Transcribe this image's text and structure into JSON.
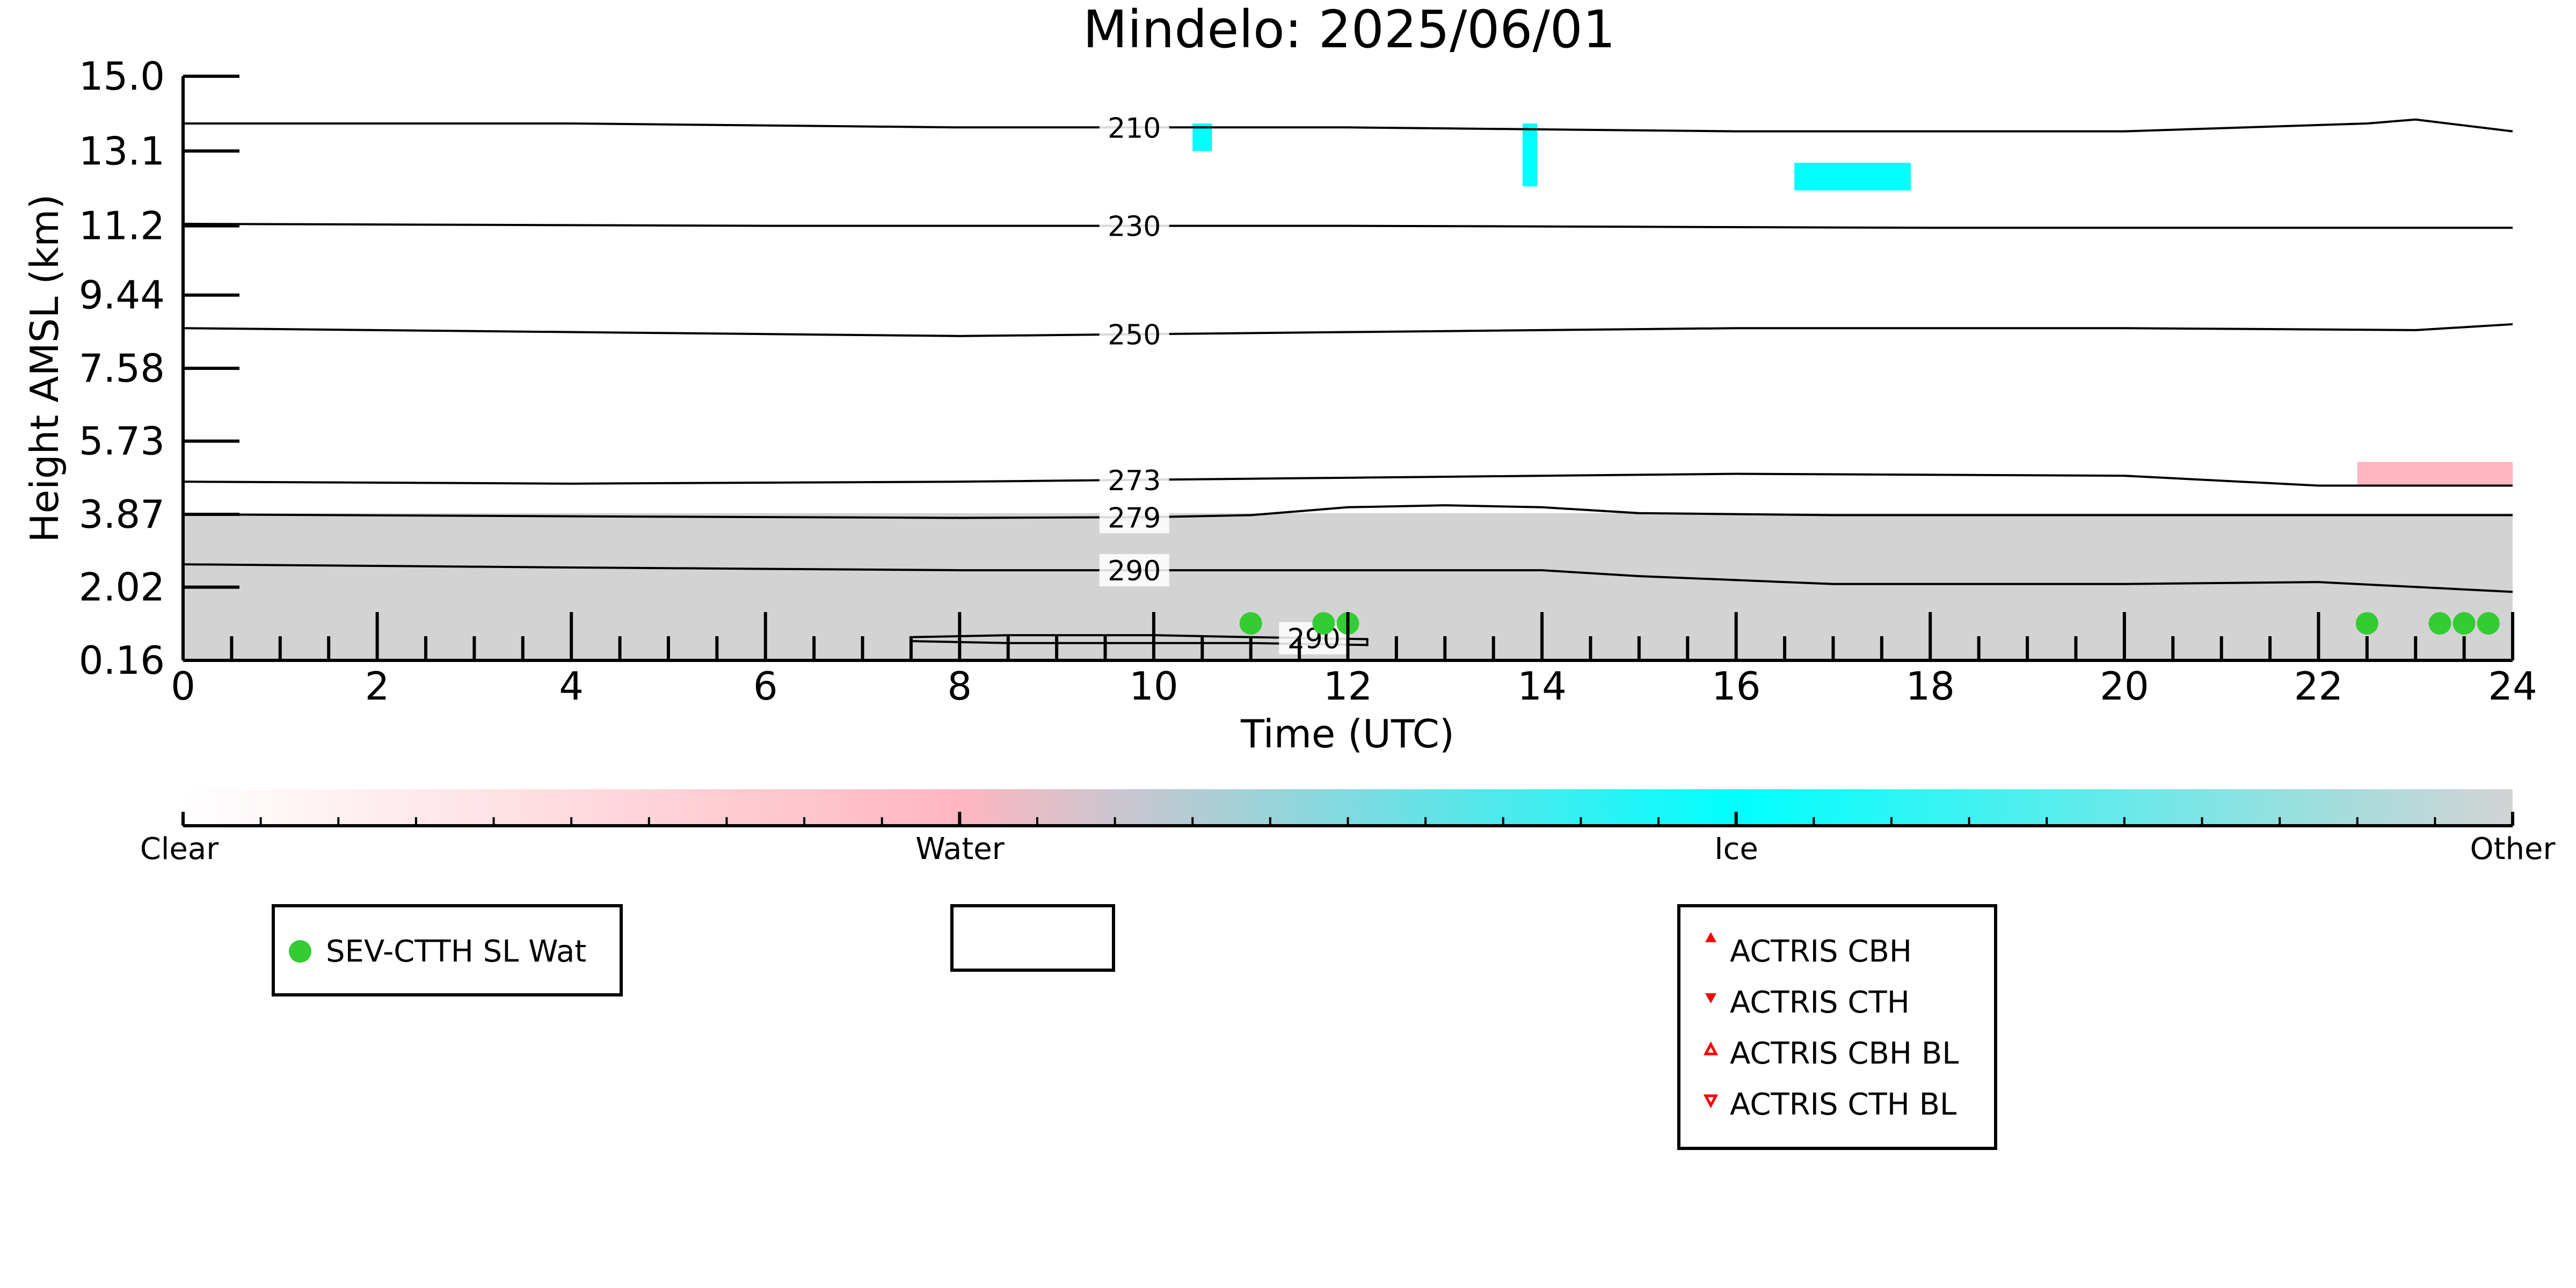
{
  "chart_data": {
    "type": "heatmap",
    "title": "Mindelo: 2025/06/01",
    "xlabel": "Time (UTC)",
    "ylabel": "Height AMSL (km)",
    "xlim": [
      0,
      24
    ],
    "ylim": [
      0.16,
      15.0
    ],
    "x_ticks": [
      "0",
      "2",
      "4",
      "6",
      "8",
      "10",
      "12",
      "14",
      "16",
      "18",
      "20",
      "22",
      "24"
    ],
    "y_ticks": [
      "0.16",
      "2.02",
      "3.87",
      "5.73",
      "7.58",
      "9.44",
      "11.2",
      "13.1",
      "15.0"
    ],
    "y_tick_values": [
      0.16,
      2.02,
      3.87,
      5.73,
      7.58,
      9.44,
      11.2,
      13.1,
      15.0
    ],
    "grid": false,
    "colorbar": {
      "labels": [
        "Clear",
        "Water",
        "Ice",
        "Other"
      ],
      "colors": [
        "#ffffff",
        "#ffb6c1",
        "#00ffff",
        "#d3d3d3"
      ]
    },
    "classification_regions": [
      {
        "class": "Other",
        "color": "#d3d3d3",
        "x": [
          0,
          24
        ],
        "y": [
          0.16,
          3.9
        ]
      },
      {
        "class": "Water",
        "color": "#ffb6c1",
        "x": [
          22.4,
          24
        ],
        "y": [
          4.6,
          5.2
        ]
      },
      {
        "class": "Ice",
        "color": "#00ffff",
        "x": [
          10.4,
          10.6
        ],
        "y": [
          13.1,
          13.8
        ]
      },
      {
        "class": "Ice",
        "color": "#00ffff",
        "x": [
          13.8,
          13.95
        ],
        "y": [
          12.2,
          13.8
        ]
      },
      {
        "class": "Ice",
        "color": "#00ffff",
        "x": [
          16.6,
          17.8
        ],
        "y": [
          12.1,
          12.8
        ]
      }
    ],
    "isotherms": [
      {
        "label": "210",
        "label_x": 9.8,
        "x": [
          0,
          4,
          8,
          12,
          16,
          20,
          22.5,
          23,
          24
        ],
        "y": [
          13.8,
          13.8,
          13.7,
          13.7,
          13.6,
          13.6,
          13.8,
          13.9,
          13.6
        ]
      },
      {
        "label": "230",
        "label_x": 9.8,
        "x": [
          0,
          6,
          12,
          18,
          24
        ],
        "y": [
          11.25,
          11.2,
          11.2,
          11.15,
          11.15
        ]
      },
      {
        "label": "250",
        "label_x": 9.8,
        "x": [
          0,
          4,
          8,
          12,
          16,
          20,
          23,
          24
        ],
        "y": [
          8.6,
          8.5,
          8.4,
          8.5,
          8.6,
          8.6,
          8.55,
          8.7
        ]
      },
      {
        "label": "273",
        "label_x": 9.8,
        "x": [
          0,
          4,
          8,
          12,
          16,
          20,
          22,
          24
        ],
        "y": [
          4.7,
          4.65,
          4.7,
          4.8,
          4.9,
          4.85,
          4.6,
          4.6
        ]
      },
      {
        "label": "279",
        "label_x": 9.8,
        "x": [
          0,
          4,
          8,
          10,
          11,
          12,
          13,
          14,
          15,
          17,
          20,
          24
        ],
        "y": [
          3.87,
          3.82,
          3.78,
          3.8,
          3.85,
          4.05,
          4.1,
          4.05,
          3.9,
          3.85,
          3.85,
          3.85
        ]
      },
      {
        "label": "290",
        "label_x": 9.8,
        "x": [
          0,
          4,
          8,
          12,
          14,
          15,
          17,
          20,
          22,
          24
        ],
        "y": [
          2.6,
          2.52,
          2.45,
          2.45,
          2.45,
          2.3,
          2.1,
          2.1,
          2.15,
          1.9
        ]
      },
      {
        "label": "290",
        "label_x": 11.65,
        "x": [
          7.5,
          8.5,
          10,
          11,
          12.2,
          12.2,
          11,
          10,
          8.5,
          7.5
        ],
        "y": [
          0.75,
          0.8,
          0.8,
          0.75,
          0.7,
          0.55,
          0.6,
          0.6,
          0.6,
          0.65
        ]
      }
    ],
    "series": [
      {
        "name": "SEV-CTTH SL Wat",
        "marker": "circle",
        "color": "#33cc33",
        "x": [
          11.0,
          11.75,
          12.0,
          22.5,
          23.25,
          23.5,
          23.75
        ],
        "y": [
          1.1,
          1.1,
          1.1,
          1.1,
          1.1,
          1.1,
          1.1
        ]
      }
    ],
    "legends": [
      {
        "entries": [
          {
            "label": "SEV-CTTH SL Wat",
            "marker": "circle-filled",
            "color": "#33cc33"
          }
        ]
      },
      {
        "entries": []
      },
      {
        "entries": [
          {
            "label": "ACTRIS CBH",
            "marker": "triangle-up-filled",
            "color": "#ff0000"
          },
          {
            "label": "ACTRIS CTH",
            "marker": "triangle-down-filled",
            "color": "#ff0000"
          },
          {
            "label": "ACTRIS CBH BL",
            "marker": "triangle-up-open",
            "color": "#ff0000"
          },
          {
            "label": "ACTRIS CTH BL",
            "marker": "triangle-down-open",
            "color": "#ff0000"
          }
        ]
      }
    ]
  }
}
